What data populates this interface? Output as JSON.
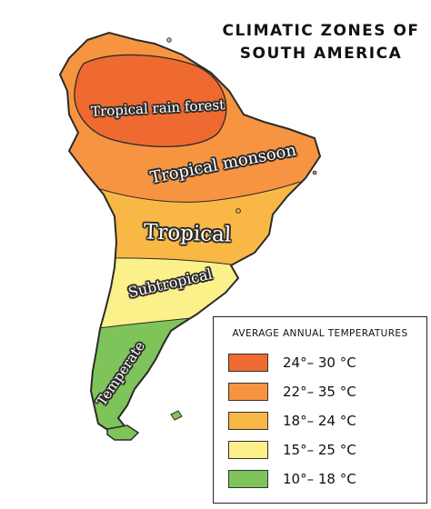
{
  "title": {
    "line1": "CLIMATIC ZONES OF",
    "line2": "SOUTH AMERICA"
  },
  "zones": [
    {
      "label": "Tropical rain forest",
      "color": "#ee6a30"
    },
    {
      "label": "Tropical monsoon",
      "color": "#f79441"
    },
    {
      "label": "Tropical",
      "color": "#f9b845"
    },
    {
      "label": "Subtropical",
      "color": "#fbf08a"
    },
    {
      "label": "Temperate",
      "color": "#7fc45a"
    }
  ],
  "legend": {
    "title": "AVERAGE ANNUAL TEMPERATURES",
    "items": [
      {
        "range": "24°– 30 °C",
        "color": "#ee6a30"
      },
      {
        "range": "22°– 35 °C",
        "color": "#f79441"
      },
      {
        "range": "18°– 24 °C",
        "color": "#f9b845"
      },
      {
        "range": "15°– 25 °C",
        "color": "#fbf08a"
      },
      {
        "range": "10°– 18 °C",
        "color": "#7fc45a"
      }
    ]
  },
  "colors": {
    "outline": "#2a2a2a",
    "background": "#ffffff"
  }
}
